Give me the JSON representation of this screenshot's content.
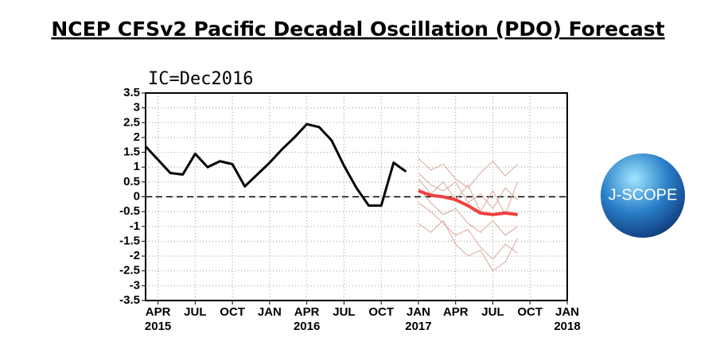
{
  "chart_data": {
    "type": "line",
    "title": "NCEP CFSv2 Pacific Decadal Oscillation (PDO) Forecast",
    "subtitle": "IC=Dec2016",
    "xlim": [
      "2015-03",
      "2018-01"
    ],
    "xticks": [
      {
        "value": "2015-04",
        "label": "APR"
      },
      {
        "value": "2015-07",
        "label": "JUL"
      },
      {
        "value": "2015-10",
        "label": "OCT"
      },
      {
        "value": "2016-01",
        "label": "JAN"
      },
      {
        "value": "2016-04",
        "label": "APR"
      },
      {
        "value": "2016-07",
        "label": "JUL"
      },
      {
        "value": "2016-10",
        "label": "OCT"
      },
      {
        "value": "2017-01",
        "label": "JAN"
      },
      {
        "value": "2017-04",
        "label": "APR"
      },
      {
        "value": "2017-07",
        "label": "JUL"
      },
      {
        "value": "2017-10",
        "label": "OCT"
      },
      {
        "value": "2018-01",
        "label": "JAN"
      }
    ],
    "xticks_years": [
      {
        "value": "2015-04",
        "label": "2015"
      },
      {
        "value": "2016-04",
        "label": "2016"
      },
      {
        "value": "2017-01",
        "label": "2017"
      },
      {
        "value": "2018-01",
        "label": "2018"
      }
    ],
    "ylim": [
      -3.5,
      3.5
    ],
    "yticks": [
      -3.5,
      -3,
      -2.5,
      -2,
      -1.5,
      -1,
      -0.5,
      0,
      0.5,
      1,
      1.5,
      2,
      2.5,
      3,
      3.5
    ],
    "grid": true,
    "reference_line": 0,
    "series": [
      {
        "color": "#d9a898",
        "width": 1,
        "x": [
          "2017-01",
          "2017-02",
          "2017-03",
          "2017-04",
          "2017-05",
          "2017-06",
          "2017-07",
          "2017-08",
          "2017-09"
        ],
        "values": [
          1.3,
          0.9,
          1.1,
          0.6,
          0.3,
          0.8,
          1.2,
          0.7,
          1.1
        ]
      },
      {
        "color": "#d9a898",
        "width": 1,
        "x": [
          "2017-01",
          "2017-02",
          "2017-03",
          "2017-04",
          "2017-05",
          "2017-06",
          "2017-07",
          "2017-08",
          "2017-09"
        ],
        "values": [
          0.8,
          0.4,
          0.2,
          0.5,
          -0.2,
          0.1,
          -0.4,
          0.3,
          -0.1
        ]
      },
      {
        "color": "#d9a898",
        "width": 1,
        "x": [
          "2017-01",
          "2017-02",
          "2017-03",
          "2017-04",
          "2017-05",
          "2017-06",
          "2017-07",
          "2017-08",
          "2017-09"
        ],
        "values": [
          0.3,
          -0.2,
          -0.6,
          -0.4,
          -0.9,
          -1.2,
          -0.8,
          -1.3,
          -1.0
        ]
      },
      {
        "color": "#d9a898",
        "width": 1,
        "x": [
          "2017-01",
          "2017-02",
          "2017-03",
          "2017-04",
          "2017-05",
          "2017-06",
          "2017-07",
          "2017-08",
          "2017-09"
        ],
        "values": [
          -0.2,
          -0.5,
          -0.9,
          -1.3,
          -1.1,
          -1.7,
          -2.1,
          -1.6,
          -1.9
        ]
      },
      {
        "color": "#d9a898",
        "width": 1,
        "x": [
          "2017-01",
          "2017-02",
          "2017-03",
          "2017-04",
          "2017-05",
          "2017-06",
          "2017-07",
          "2017-08",
          "2017-09"
        ],
        "values": [
          -0.9,
          -1.2,
          -0.8,
          -1.6,
          -2.0,
          -1.8,
          -2.5,
          -2.2,
          -1.4
        ]
      },
      {
        "color": "#d9a898",
        "width": 1,
        "x": [
          "2017-01",
          "2017-02",
          "2017-03",
          "2017-04",
          "2017-05",
          "2017-06",
          "2017-07",
          "2017-08",
          "2017-09"
        ],
        "values": [
          0.6,
          0.1,
          0.5,
          -0.1,
          0.4,
          -0.5,
          0.2,
          -0.6,
          0.5
        ]
      },
      {
        "color": "#000000",
        "width": 3,
        "x": [
          "2015-03",
          "2015-04",
          "2015-05",
          "2015-06",
          "2015-07",
          "2015-08",
          "2015-09",
          "2015-10",
          "2015-11",
          "2015-12",
          "2016-01",
          "2016-02",
          "2016-03",
          "2016-04",
          "2016-05",
          "2016-06",
          "2016-07",
          "2016-08",
          "2016-09",
          "2016-10",
          "2016-11",
          "2016-12"
        ],
        "values": [
          1.7,
          1.25,
          0.8,
          0.75,
          1.45,
          1.0,
          1.2,
          1.1,
          0.35,
          0.75,
          1.15,
          1.6,
          2.0,
          2.45,
          2.35,
          1.9,
          1.05,
          0.3,
          -0.3,
          -0.3,
          1.15,
          0.85
        ]
      },
      {
        "color": "#f04040",
        "width": 4,
        "x": [
          "2017-01",
          "2017-02",
          "2017-03",
          "2017-04",
          "2017-05",
          "2017-06",
          "2017-07",
          "2017-08",
          "2017-09"
        ],
        "values": [
          0.2,
          0.05,
          0.0,
          -0.1,
          -0.3,
          -0.55,
          -0.6,
          -0.55,
          -0.6
        ]
      }
    ]
  },
  "logo_text": "J-SCOPE"
}
